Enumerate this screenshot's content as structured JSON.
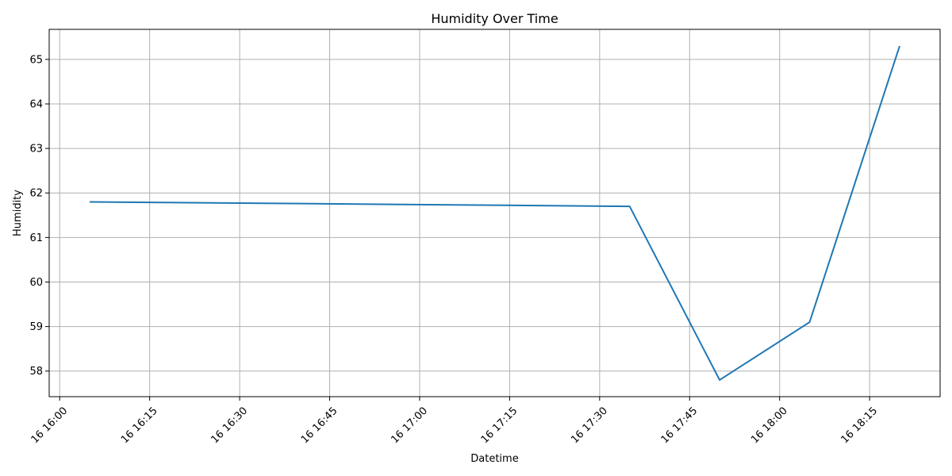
{
  "chart_data": {
    "type": "line",
    "title": "Humidity Over Time",
    "xlabel": "Datetime",
    "ylabel": "Humidity",
    "x": [
      "16:05",
      "17:35",
      "17:50",
      "18:05",
      "18:20"
    ],
    "series": [
      {
        "values": [
          61.8,
          61.7,
          57.8,
          59.1,
          65.3
        ],
        "color": "#1f77b4"
      }
    ],
    "x_ticks": [
      "16 16:00",
      "16 16:15",
      "16 16:30",
      "16 16:45",
      "16 17:00",
      "16 17:15",
      "16 17:30",
      "16 17:45",
      "16 18:00",
      "16 18:15"
    ],
    "x_tick_times": [
      "16:00",
      "16:15",
      "16:30",
      "16:45",
      "17:00",
      "17:15",
      "17:30",
      "17:45",
      "18:00",
      "18:15"
    ],
    "y_ticks": [
      58,
      59,
      60,
      61,
      62,
      63,
      64,
      65
    ],
    "xlim": [
      "16:00",
      "18:20"
    ],
    "ylim": [
      57.8,
      65.3
    ],
    "grid": true,
    "grid_color": "#b0b0b0",
    "legend": "none"
  }
}
